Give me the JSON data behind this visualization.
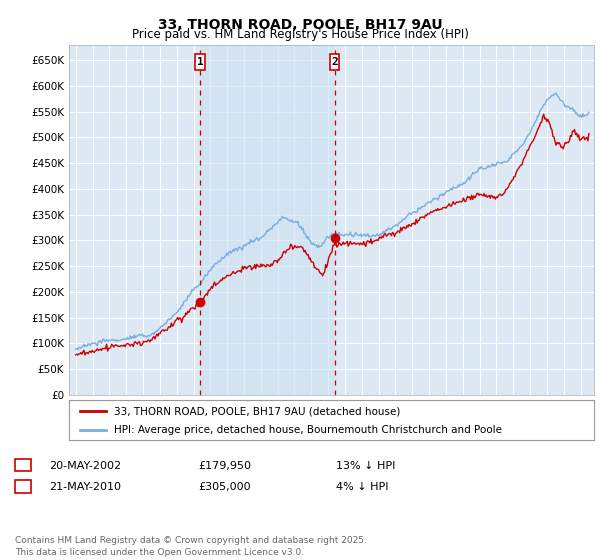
{
  "title": "33, THORN ROAD, POOLE, BH17 9AU",
  "subtitle": "Price paid vs. HM Land Registry's House Price Index (HPI)",
  "ylim": [
    0,
    680000
  ],
  "yticks": [
    0,
    50000,
    100000,
    150000,
    200000,
    250000,
    300000,
    350000,
    400000,
    450000,
    500000,
    550000,
    600000,
    650000
  ],
  "xlim_start": 1994.6,
  "xlim_end": 2025.8,
  "background_color": "#ffffff",
  "plot_bg_color": "#dce9f5",
  "highlight_bg_color": "#cce0f0",
  "grid_color": "#ffffff",
  "transaction1_x": 2002.38,
  "transaction1_y": 179950,
  "transaction1_label": "1",
  "transaction2_x": 2010.38,
  "transaction2_y": 305000,
  "transaction2_label": "2",
  "legend_label_red": "33, THORN ROAD, POOLE, BH17 9AU (detached house)",
  "legend_label_blue": "HPI: Average price, detached house, Bournemouth Christchurch and Poole",
  "table_row1": [
    "1",
    "20-MAY-2002",
    "£179,950",
    "13% ↓ HPI"
  ],
  "table_row2": [
    "2",
    "21-MAY-2010",
    "£305,000",
    "4% ↓ HPI"
  ],
  "footer": "Contains HM Land Registry data © Crown copyright and database right 2025.\nThis data is licensed under the Open Government Licence v3.0.",
  "red_color": "#cc0000",
  "blue_color": "#7aaddb",
  "vline_color": "#cc0000",
  "dot_color": "#cc0000"
}
